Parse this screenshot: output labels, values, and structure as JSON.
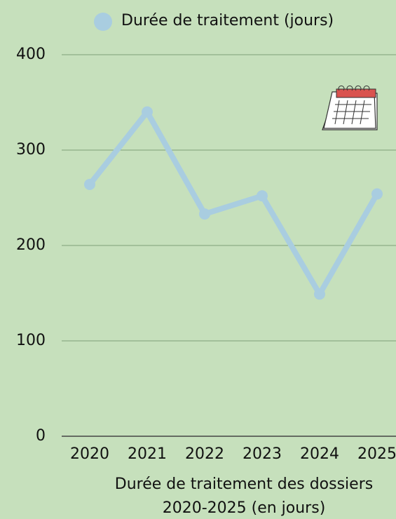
{
  "chart_data": {
    "type": "line",
    "categories": [
      "2020",
      "2021",
      "2022",
      "2023",
      "2024",
      "2025"
    ],
    "series": [
      {
        "name": "Durée de traitement (jours)",
        "color": "#a9cde0",
        "values": [
          264,
          340,
          233,
          252,
          149,
          254
        ]
      }
    ],
    "xlabel": [
      "Durée de traitement des dossiers",
      "2020-2025 (en jours)"
    ],
    "ylim": [
      0,
      400
    ],
    "yticks": [
      0,
      100,
      200,
      300,
      400
    ],
    "grid": true,
    "legend": "top"
  }
}
